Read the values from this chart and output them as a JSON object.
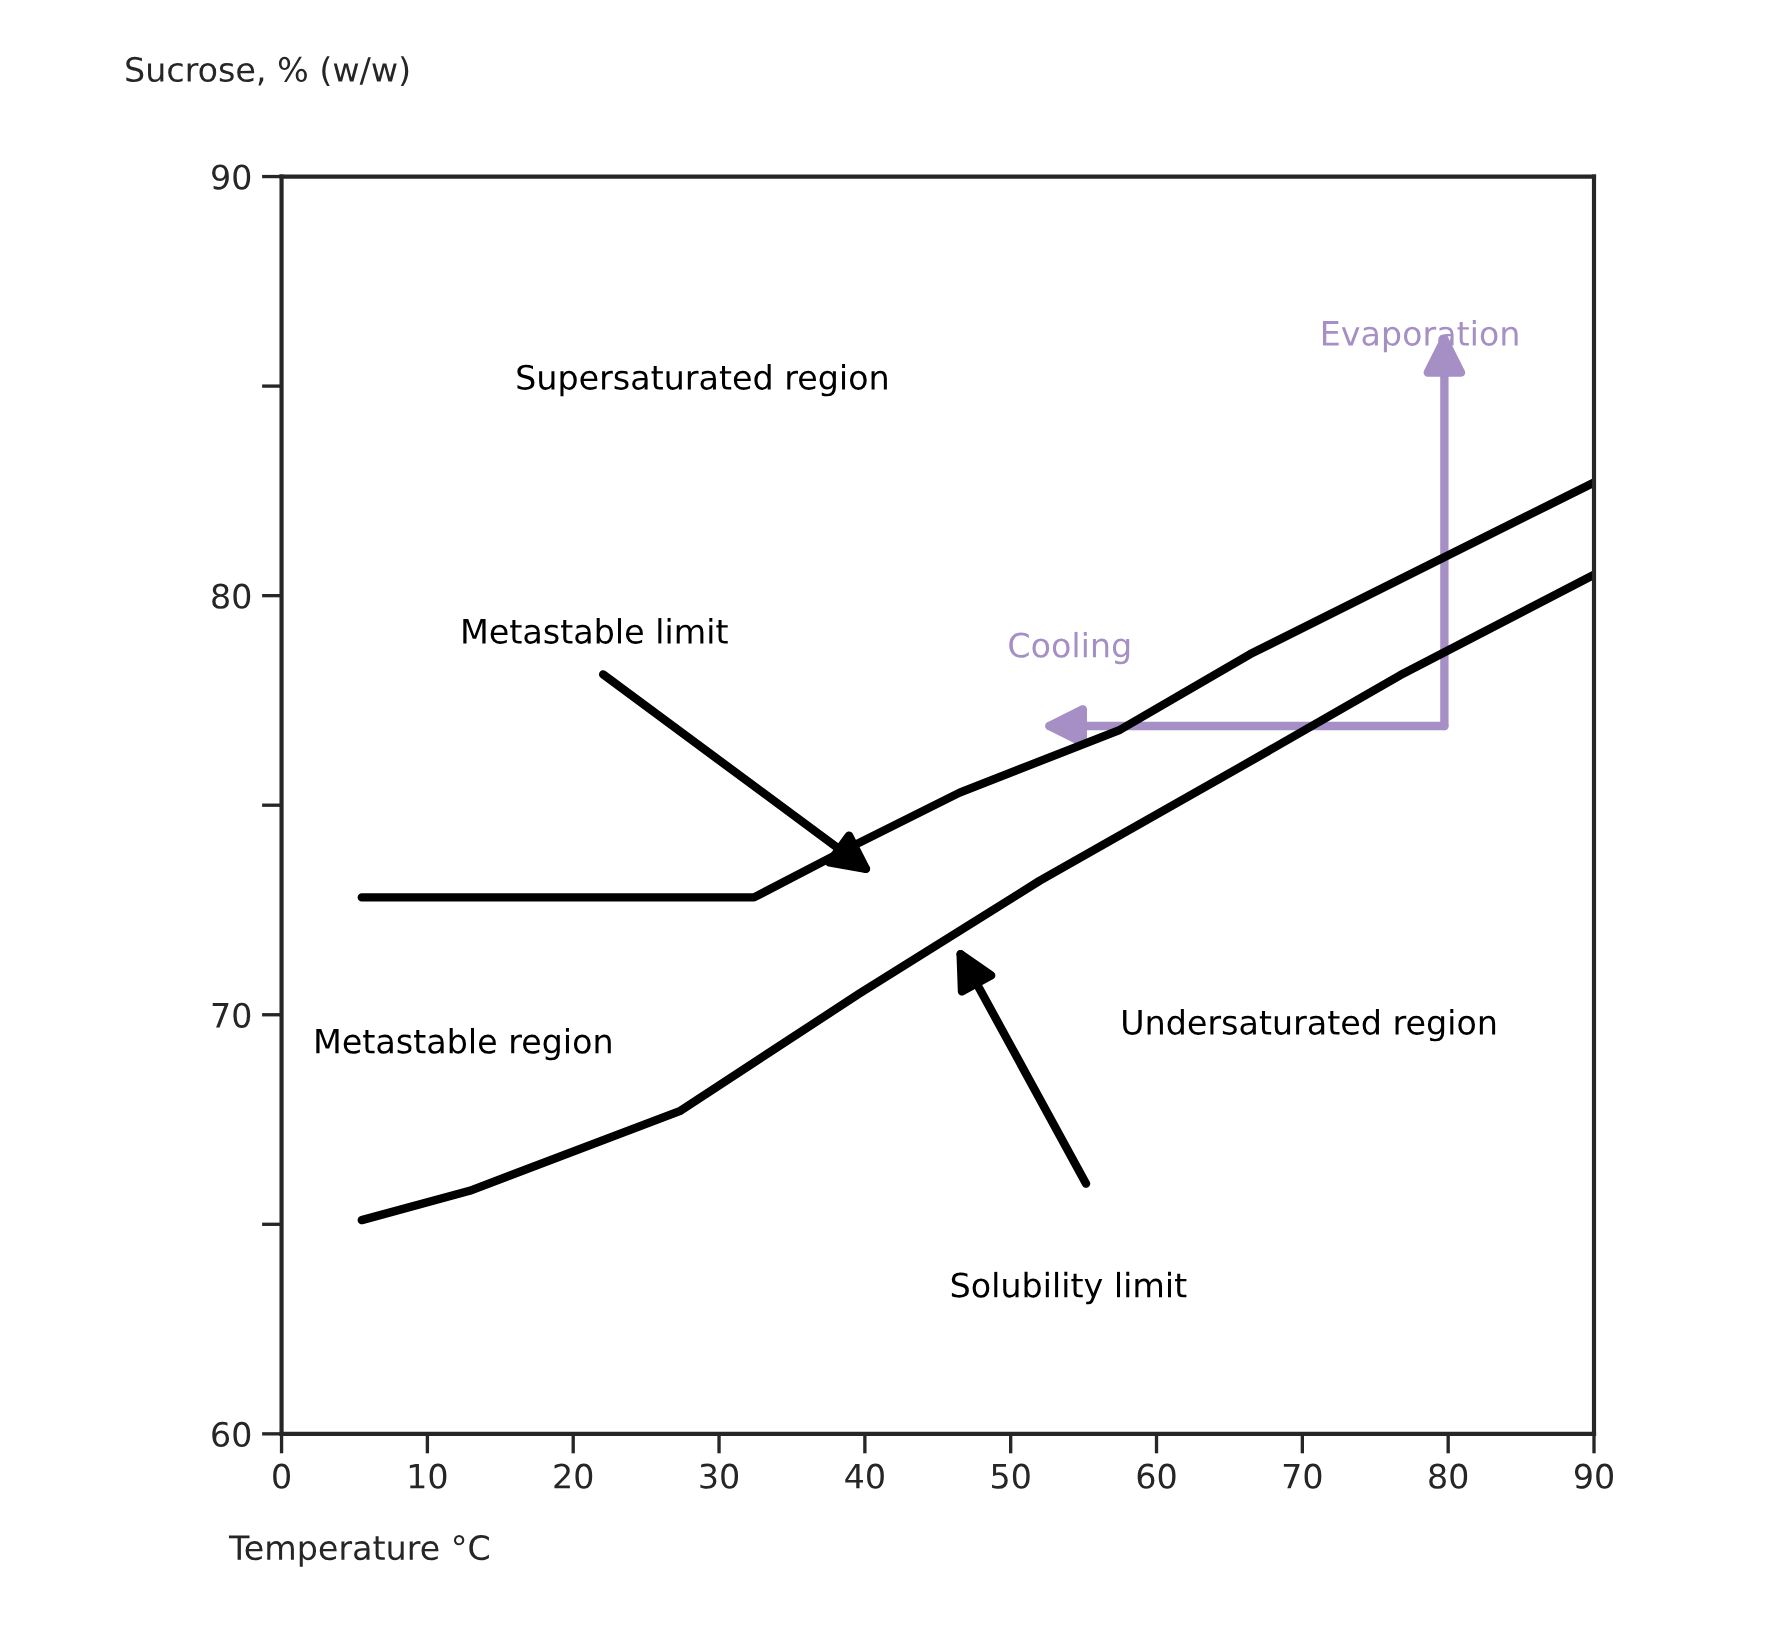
{
  "chart_data": {
    "type": "line",
    "xlabel": "Temperature °C",
    "ylabel": "Sucrose, % (w/w)",
    "xlim": [
      0,
      90
    ],
    "ylim": [
      60,
      90
    ],
    "xticks": [
      0,
      10,
      20,
      30,
      40,
      50,
      60,
      70,
      80,
      90
    ],
    "yticks": [
      60,
      {
        "value": 65,
        "label": null
      },
      70,
      {
        "value": 75,
        "label": null
      },
      80,
      {
        "value": 85,
        "label": null
      },
      90
    ],
    "grid": false,
    "legend": false,
    "marker": "none",
    "line_style": "solid",
    "series": [
      {
        "color": "#000000",
        "x": [
          5.5,
          32.4,
          39.6,
          46.5,
          57.5,
          66.4,
          90
        ],
        "values": [
          72.8,
          72.8,
          74.1,
          75.3,
          76.8,
          78.6,
          82.7
        ]
      },
      {
        "color": "#000000",
        "x": [
          5.5,
          12.9,
          27.3,
          39.6,
          52,
          65.7,
          76.7,
          90
        ],
        "values": [
          65.1,
          65.8,
          67.7,
          70.5,
          73.2,
          75.9,
          78.1,
          80.5
        ]
      }
    ],
    "annotations": [
      "Supersaturated region",
      "Metastable region",
      "Undersaturated region",
      "Metastable limit",
      "Solubility limit",
      "Cooling",
      "Evaporation"
    ]
  }
}
